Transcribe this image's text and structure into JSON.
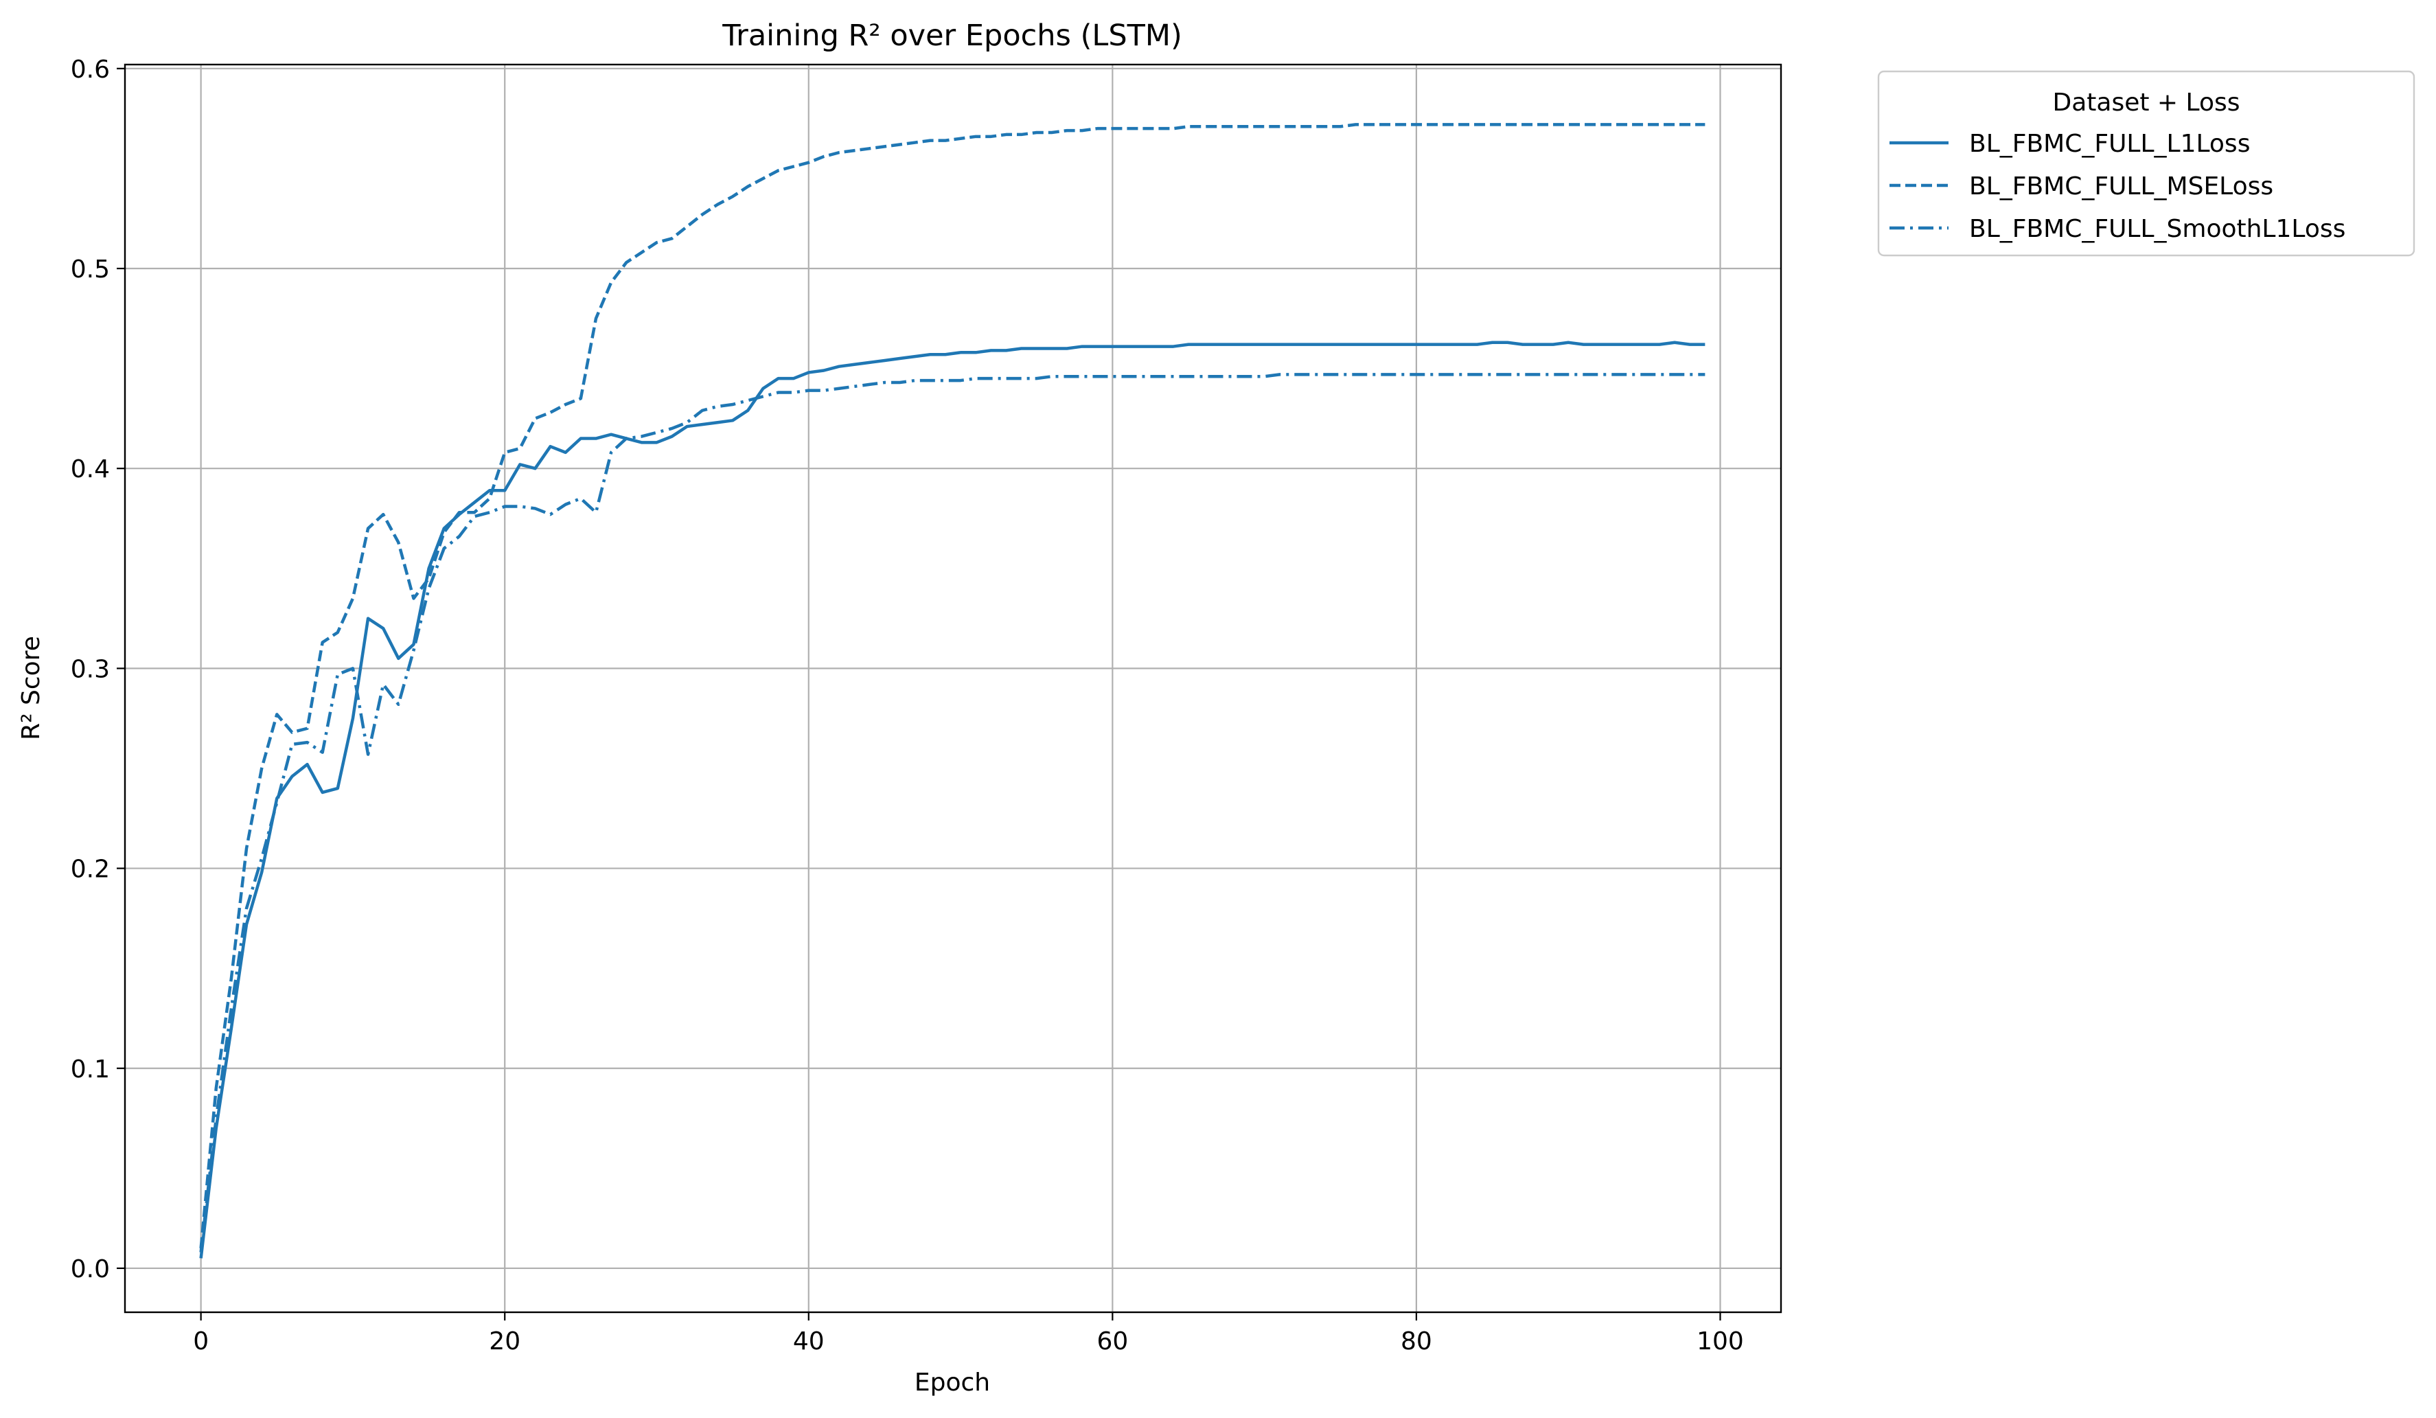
{
  "chart_data": {
    "type": "line",
    "title": "Training R² over Epochs (LSTM)",
    "xlabel": "Epoch",
    "ylabel": "R² Score",
    "xlim": [
      -5,
      104
    ],
    "ylim": [
      -0.022,
      0.602
    ],
    "xticks": [
      0,
      20,
      40,
      60,
      80,
      100
    ],
    "yticks": [
      0.0,
      0.1,
      0.2,
      0.3,
      0.4,
      0.5,
      0.6
    ],
    "xtick_labels": [
      "0",
      "20",
      "40",
      "60",
      "80",
      "100"
    ],
    "ytick_labels": [
      "0.0",
      "0.1",
      "0.2",
      "0.3",
      "0.4",
      "0.5",
      "0.6"
    ],
    "grid": true,
    "legend": {
      "title": "Dataset + Loss",
      "placement": "outside-upper-right"
    },
    "series": [
      {
        "name": "BL_FBMC_FULL_L1Loss",
        "color": "#1f77b4",
        "linestyle": "solid",
        "values": [
          0.005,
          0.07,
          0.12,
          0.172,
          0.198,
          0.235,
          0.246,
          0.252,
          0.238,
          0.24,
          0.275,
          0.325,
          0.32,
          0.305,
          0.312,
          0.35,
          0.37,
          0.377,
          0.383,
          0.389,
          0.389,
          0.402,
          0.4,
          0.411,
          0.408,
          0.415,
          0.415,
          0.417,
          0.415,
          0.413,
          0.413,
          0.416,
          0.421,
          0.422,
          0.423,
          0.424,
          0.429,
          0.44,
          0.445,
          0.445,
          0.448,
          0.449,
          0.451,
          0.452,
          0.453,
          0.454,
          0.455,
          0.456,
          0.457,
          0.457,
          0.458,
          0.458,
          0.459,
          0.459,
          0.46,
          0.46,
          0.46,
          0.46,
          0.461,
          0.461,
          0.461,
          0.461,
          0.461,
          0.461,
          0.461,
          0.462,
          0.462,
          0.462,
          0.462,
          0.462,
          0.462,
          0.462,
          0.462,
          0.462,
          0.462,
          0.462,
          0.462,
          0.462,
          0.462,
          0.462,
          0.462,
          0.462,
          0.462,
          0.462,
          0.462,
          0.463,
          0.463,
          0.462,
          0.462,
          0.462,
          0.463,
          0.462,
          0.462,
          0.462,
          0.462,
          0.462,
          0.462,
          0.463,
          0.462,
          0.462
        ]
      },
      {
        "name": "BL_FBMC_FULL_MSELoss",
        "color": "#1f77b4",
        "linestyle": "dashed",
        "values": [
          0.01,
          0.09,
          0.145,
          0.21,
          0.25,
          0.277,
          0.268,
          0.27,
          0.313,
          0.318,
          0.335,
          0.37,
          0.377,
          0.363,
          0.335,
          0.345,
          0.368,
          0.378,
          0.378,
          0.385,
          0.408,
          0.41,
          0.425,
          0.428,
          0.432,
          0.435,
          0.475,
          0.493,
          0.503,
          0.508,
          0.513,
          0.515,
          0.521,
          0.527,
          0.532,
          0.536,
          0.541,
          0.545,
          0.549,
          0.551,
          0.553,
          0.556,
          0.558,
          0.559,
          0.56,
          0.561,
          0.562,
          0.563,
          0.564,
          0.564,
          0.565,
          0.566,
          0.566,
          0.567,
          0.567,
          0.568,
          0.568,
          0.569,
          0.569,
          0.57,
          0.57,
          0.57,
          0.57,
          0.57,
          0.57,
          0.571,
          0.571,
          0.571,
          0.571,
          0.571,
          0.571,
          0.571,
          0.571,
          0.571,
          0.571,
          0.571,
          0.572,
          0.572,
          0.572,
          0.572,
          0.572,
          0.572,
          0.572,
          0.572,
          0.572,
          0.572,
          0.572,
          0.572,
          0.572,
          0.572,
          0.572,
          0.572,
          0.572,
          0.572,
          0.572,
          0.572,
          0.572,
          0.572,
          0.572,
          0.572
        ]
      },
      {
        "name": "BL_FBMC_FULL_SmoothL1Loss",
        "color": "#1f77b4",
        "linestyle": "dashdot",
        "values": [
          0.008,
          0.075,
          0.13,
          0.18,
          0.205,
          0.233,
          0.262,
          0.263,
          0.258,
          0.297,
          0.3,
          0.257,
          0.292,
          0.282,
          0.309,
          0.34,
          0.36,
          0.366,
          0.376,
          0.378,
          0.381,
          0.381,
          0.38,
          0.377,
          0.382,
          0.385,
          0.378,
          0.408,
          0.415,
          0.416,
          0.418,
          0.42,
          0.423,
          0.429,
          0.431,
          0.432,
          0.434,
          0.436,
          0.438,
          0.438,
          0.439,
          0.439,
          0.44,
          0.441,
          0.442,
          0.443,
          0.443,
          0.444,
          0.444,
          0.444,
          0.444,
          0.445,
          0.445,
          0.445,
          0.445,
          0.445,
          0.446,
          0.446,
          0.446,
          0.446,
          0.446,
          0.446,
          0.446,
          0.446,
          0.446,
          0.446,
          0.446,
          0.446,
          0.446,
          0.446,
          0.446,
          0.447,
          0.447,
          0.447,
          0.447,
          0.447,
          0.447,
          0.447,
          0.447,
          0.447,
          0.447,
          0.447,
          0.447,
          0.447,
          0.447,
          0.447,
          0.447,
          0.447,
          0.447,
          0.447,
          0.447,
          0.447,
          0.447,
          0.447,
          0.447,
          0.447,
          0.447,
          0.447,
          0.447,
          0.447
        ]
      }
    ]
  }
}
